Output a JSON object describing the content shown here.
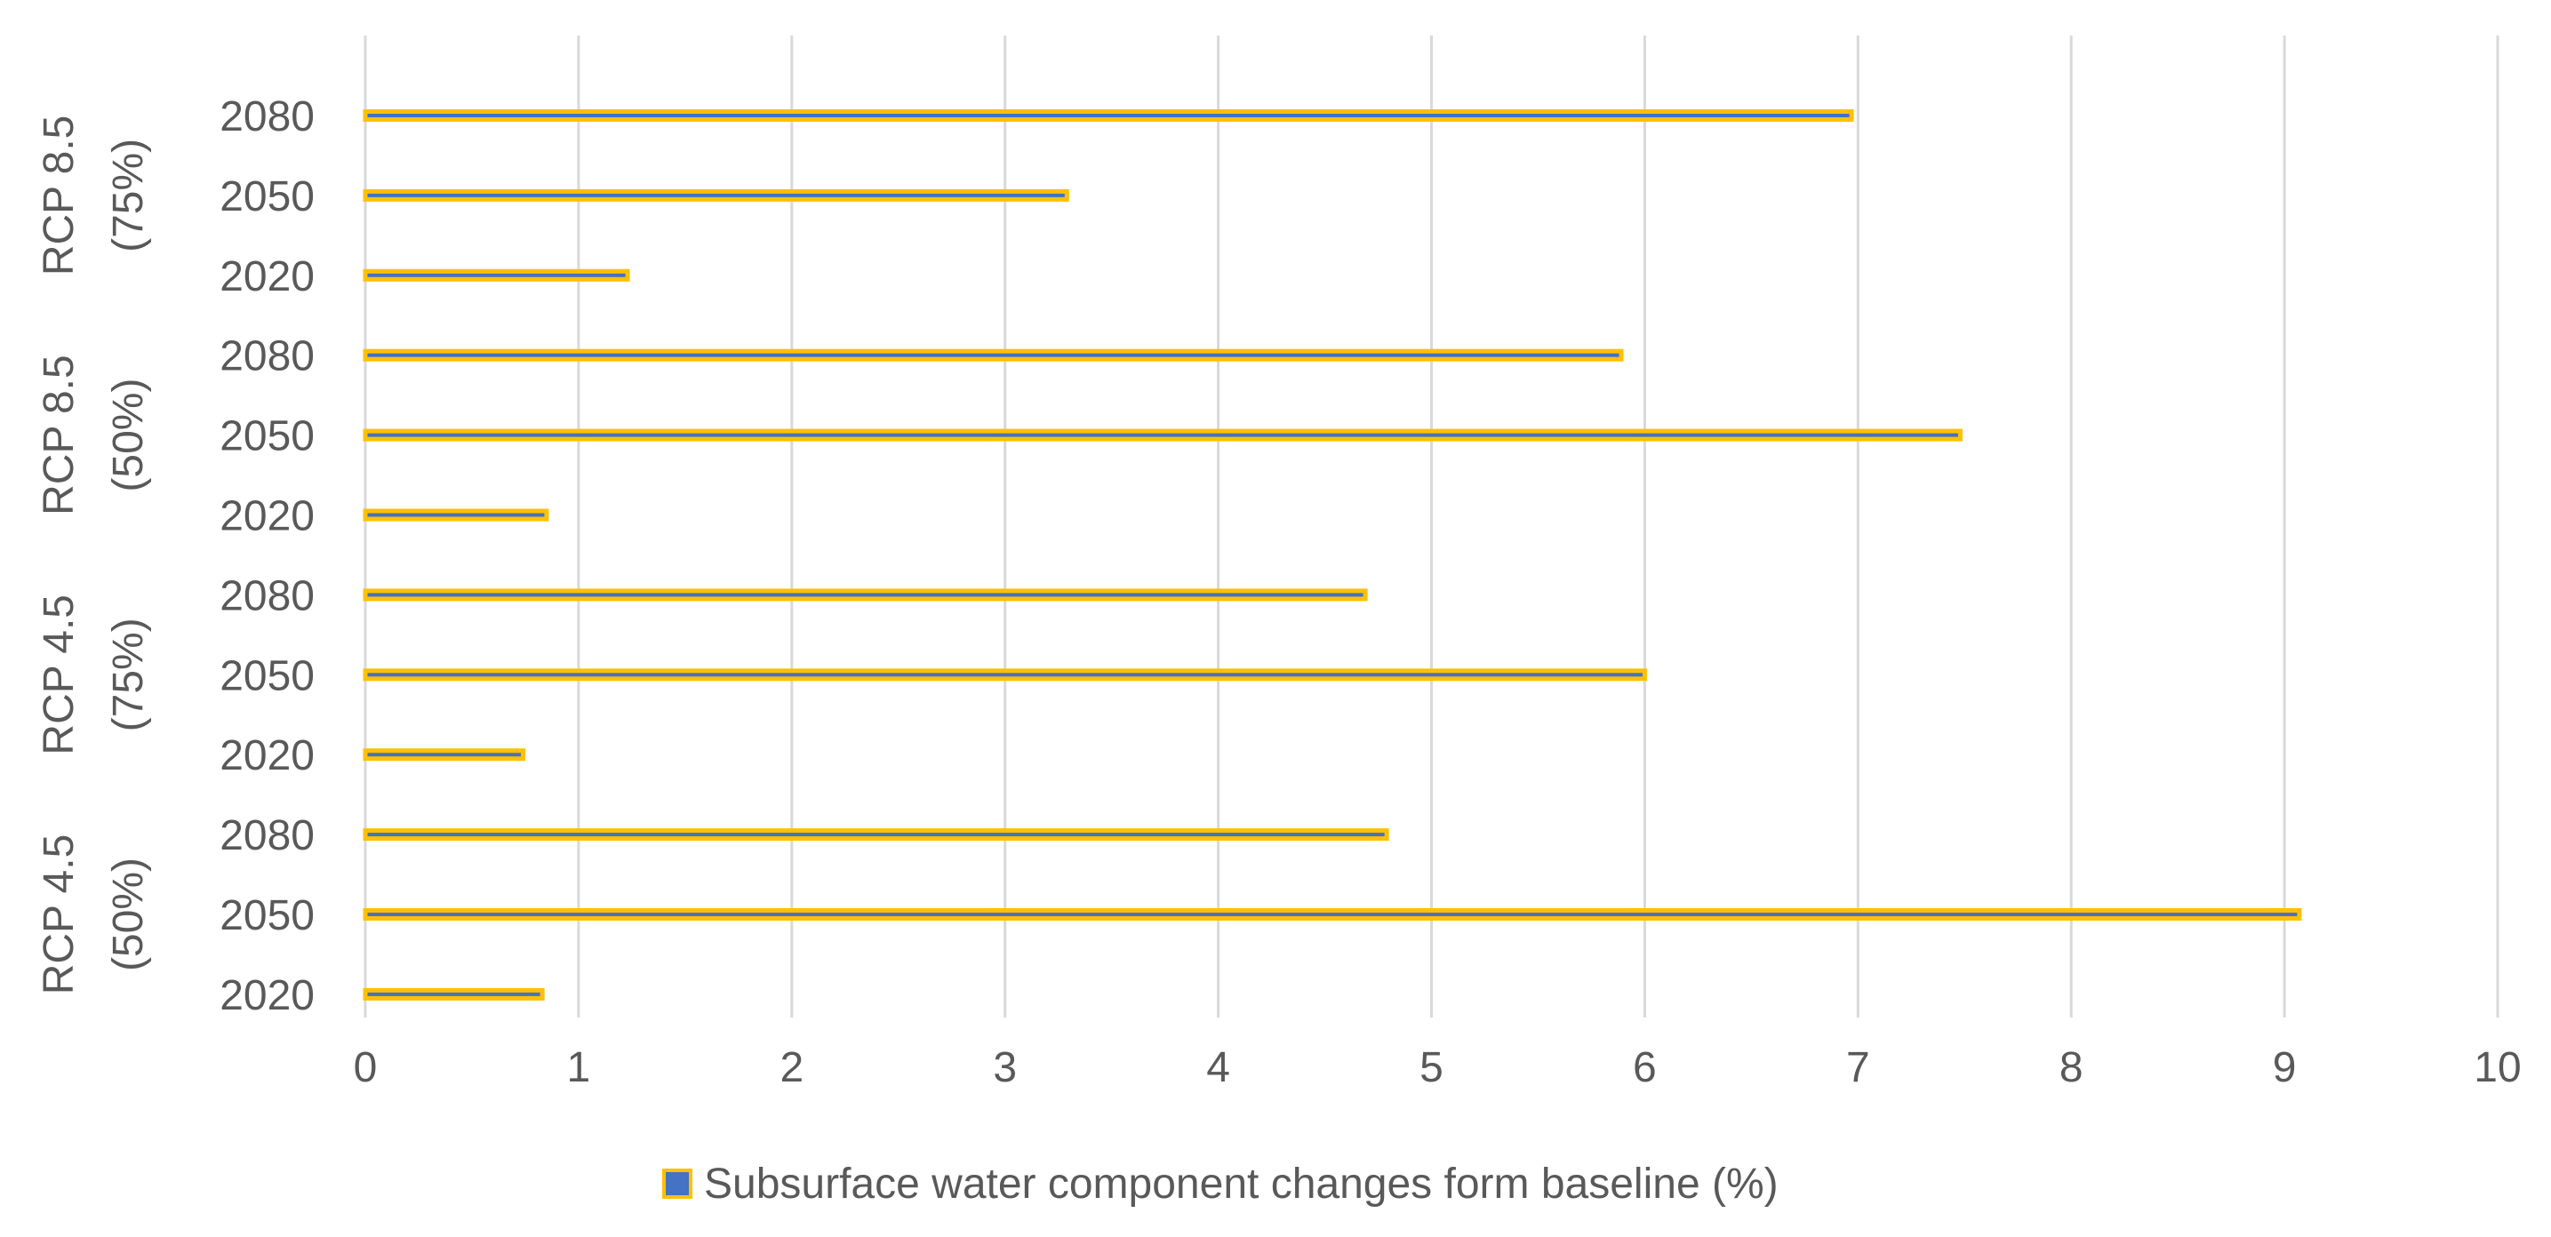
{
  "chart_data": {
    "type": "bar",
    "orientation": "horizontal",
    "title": "",
    "xlabel": "",
    "ylabel": "",
    "xlim": [
      0,
      10
    ],
    "x_ticks": [
      "0",
      "1",
      "2",
      "3",
      "4",
      "5",
      "6",
      "7",
      "8",
      "9",
      "10"
    ],
    "grid": "vertical",
    "groups": [
      {
        "label": "RCP 4.5 (50%)",
        "lines": [
          "RCP 4.5",
          "(50%)"
        ],
        "categories": [
          "2020",
          "2050",
          "2080"
        ],
        "values": [
          0.83,
          9.07,
          4.79
        ]
      },
      {
        "label": "RCP 4.5 (75%)",
        "lines": [
          "RCP 4.5",
          "(75%)"
        ],
        "categories": [
          "2020",
          "2050",
          "2080"
        ],
        "values": [
          0.74,
          6.0,
          4.69
        ]
      },
      {
        "label": "RCP 8.5 (50%)",
        "lines": [
          "RCP 8.5",
          "(50%)"
        ],
        "categories": [
          "2020",
          "2050",
          "2080"
        ],
        "values": [
          0.85,
          7.48,
          5.89
        ]
      },
      {
        "label": "RCP 8.5 (75%)",
        "lines": [
          "RCP 8.5",
          "(75%)"
        ],
        "categories": [
          "2020",
          "2050",
          "2080"
        ],
        "values": [
          1.23,
          3.29,
          6.97
        ]
      }
    ],
    "series": [
      {
        "name": "Subsurface water component changes form baseline (%)",
        "fill_color": "#4472C4",
        "border_color": "#FFC000"
      }
    ],
    "legend_position": "bottom",
    "colors": {
      "grid": "#D9D9D9",
      "text": "#595959",
      "bar_border": "#FFC000",
      "bar_fill": "#4472C4"
    }
  }
}
